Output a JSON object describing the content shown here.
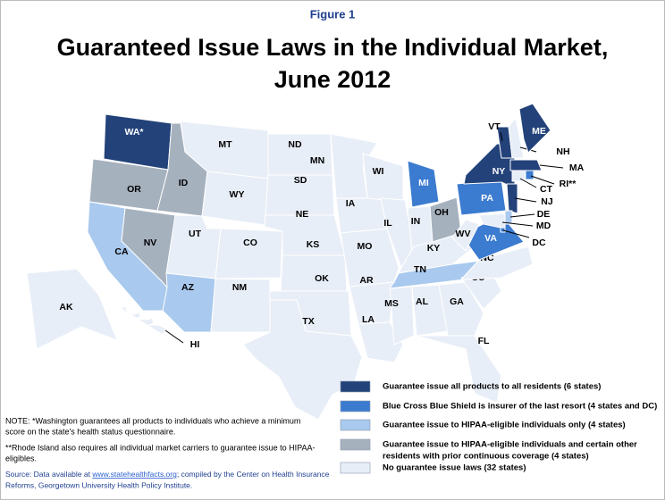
{
  "figure": "Figure 1",
  "title": [
    "Guaranteed Issue Laws in the Individual Market,",
    "June 2012"
  ],
  "legend": [
    {
      "color": "#23427a",
      "label": [
        "Guarantee issue all products to all residents (6 states)"
      ]
    },
    {
      "color": "#3b7bd0",
      "label": [
        "Blue Cross Blue Shield is insurer of the last resort (4 states and DC)"
      ]
    },
    {
      "color": "#a9c9ee",
      "label": [
        "Guarantee issue to HIPAA-eligible individuals only (4 states)"
      ]
    },
    {
      "color": "#a6b1be",
      "label": [
        "Guarantee issue to HIPAA-eligible individuals and certain other",
        "residents with prior continuous coverage (4 states)"
      ]
    },
    {
      "color": "#e8eef7",
      "label": [
        "No guarantee issue laws (32 states)"
      ]
    }
  ],
  "states": [
    {
      "label": "WA*",
      "category": 0
    },
    {
      "label": "OR",
      "category": 3
    },
    {
      "label": "CA",
      "category": 2
    },
    {
      "label": "NV",
      "category": 3
    },
    {
      "label": "ID",
      "category": 3
    },
    {
      "label": "MT",
      "category": 4
    },
    {
      "label": "WY",
      "category": 4
    },
    {
      "label": "UT",
      "category": 4
    },
    {
      "label": "AZ",
      "category": 2
    },
    {
      "label": "CO",
      "category": 4
    },
    {
      "label": "NM",
      "category": 4
    },
    {
      "label": "ND",
      "category": 4
    },
    {
      "label": "SD",
      "category": 4
    },
    {
      "label": "NE",
      "category": 4
    },
    {
      "label": "KS",
      "category": 4
    },
    {
      "label": "OK",
      "category": 4
    },
    {
      "label": "TX",
      "category": 4
    },
    {
      "label": "MN",
      "category": 4
    },
    {
      "label": "IA",
      "category": 4
    },
    {
      "label": "MO",
      "category": 4
    },
    {
      "label": "AR",
      "category": 4
    },
    {
      "label": "LA",
      "category": 4
    },
    {
      "label": "WI",
      "category": 4
    },
    {
      "label": "IL",
      "category": 4
    },
    {
      "label": "MI",
      "category": 1
    },
    {
      "label": "IN",
      "category": 4
    },
    {
      "label": "OH",
      "category": 3
    },
    {
      "label": "KY",
      "category": 4
    },
    {
      "label": "TN",
      "category": 2
    },
    {
      "label": "MS",
      "category": 4
    },
    {
      "label": "AL",
      "category": 4
    },
    {
      "label": "GA",
      "category": 4
    },
    {
      "label": "FL",
      "category": 4
    },
    {
      "label": "SC",
      "category": 4
    },
    {
      "label": "NC",
      "category": 4
    },
    {
      "label": "VA",
      "category": 1
    },
    {
      "label": "WV",
      "category": 4
    },
    {
      "label": "PA",
      "category": 1
    },
    {
      "label": "NY",
      "category": 0
    },
    {
      "label": "VT",
      "category": 0
    },
    {
      "label": "NH",
      "category": 4
    },
    {
      "label": "ME",
      "category": 0
    },
    {
      "label": "MA",
      "category": 0
    },
    {
      "label": "CT",
      "category": 4
    },
    {
      "label": "RI**",
      "category": 1
    },
    {
      "label": "NJ",
      "category": 0
    },
    {
      "label": "DE",
      "category": 2
    },
    {
      "label": "MD",
      "category": 4
    },
    {
      "label": "DC",
      "category": 1
    },
    {
      "label": "AK",
      "category": 4
    },
    {
      "label": "HI",
      "category": 4
    }
  ],
  "note": [
    "NOTE: *Washington guarantees all products to individuals who achieve a minimum",
    "score on the state's health status questionnaire.",
    "**Rhode Island also requires all individual market carriers to guarantee issue to HIPAA-",
    "eligibles."
  ],
  "source": {
    "prefix": "Source: Data available at ",
    "link": "www.statehealthfacts.org",
    "suffix": "; compiled by the Center on Health Insurance",
    "line2": "Reforms, Georgetown University Health Policy Institute."
  }
}
